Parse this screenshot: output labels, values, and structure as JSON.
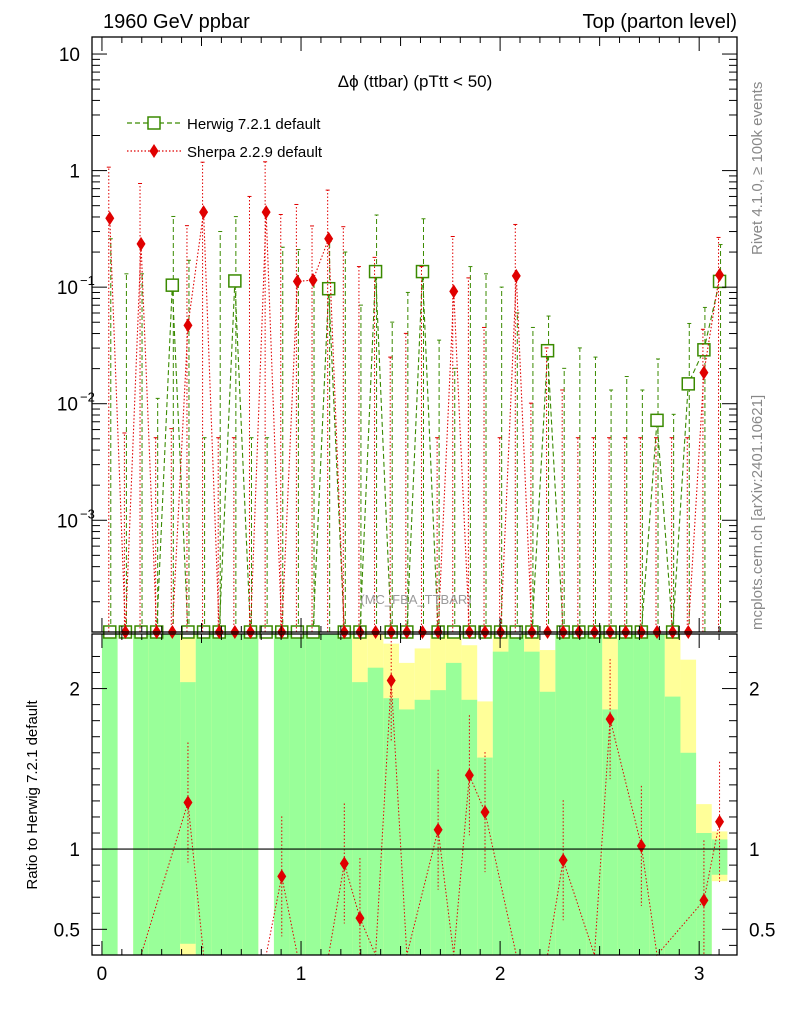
{
  "header": {
    "left": "1960 GeV ppbar",
    "right": "Top (parton level)"
  },
  "side": {
    "top": "Rivet 4.1.0, ≥ 100k events",
    "bottom": "mcplots.cern.ch [arXiv:2401.10621]"
  },
  "colors": {
    "herwig": "#3a8a00",
    "sherpa": "#e00000",
    "band_green": "#99ff99",
    "band_yellow": "#ffff99"
  },
  "chart_data": [
    {
      "type": "line",
      "name": "main",
      "title": "Δϕ (ttbar) (pTtt < 50)",
      "analysis_label": "(MC_FBA_TTBAR)",
      "yscale": "log",
      "xlim": [
        -0.05,
        3.19
      ],
      "ylim": [
        0.00011,
        14
      ],
      "ytick_labels": [
        {
          "v": 0.001,
          "base": "10",
          "exp": "−3"
        },
        {
          "v": 0.01,
          "base": "10",
          "exp": "−2"
        },
        {
          "v": 0.1,
          "base": "10",
          "exp": "−1"
        },
        {
          "v": 1,
          "base": "1",
          "exp": ""
        },
        {
          "v": 10,
          "base": "10",
          "exp": ""
        }
      ],
      "legend": [
        {
          "label": "Herwig 7.2.1 default",
          "marker": "open-square"
        },
        {
          "label": "Sherpa 2.2.9 default",
          "marker": "diamond"
        }
      ],
      "x": [
        0.0393,
        0.1178,
        0.1963,
        0.2749,
        0.3534,
        0.432,
        0.5105,
        0.589,
        0.6676,
        0.7461,
        0.8247,
        0.9032,
        0.9817,
        1.0603,
        1.1388,
        1.2174,
        1.2959,
        1.3744,
        1.453,
        1.5315,
        1.6101,
        1.6886,
        1.7671,
        1.8457,
        1.9242,
        2.0028,
        2.0813,
        2.1598,
        2.2384,
        2.3169,
        2.3955,
        2.474,
        2.5525,
        2.6311,
        2.7096,
        2.7882,
        2.8667,
        2.9452,
        3.0238,
        3.1023
      ],
      "series": [
        {
          "name": "Herwig 7.2.1 default",
          "values": [
            0.00011,
            0.00011,
            0.00011,
            0.00011,
            0.104,
            0.00011,
            0.00011,
            0.00011,
            0.113,
            0.00011,
            0.00011,
            0.00011,
            0.00011,
            0.00011,
            0.097,
            0.00011,
            0.00011,
            0.136,
            0.00011,
            0.00011,
            0.136,
            0.00011,
            0.00011,
            0.00011,
            0.00011,
            0.00011,
            0.00011,
            0.00011,
            0.0285,
            0.00011,
            0.00011,
            0.00011,
            0.00011,
            0.00011,
            0.00011,
            0.0072,
            0.00011,
            0.0148,
            0.029,
            0.112
          ],
          "err_hi": [
            0.26,
            0.13,
            0.13,
            0.011,
            0.3,
            0.17,
            0.005,
            0.3,
            0.29,
            0.005,
            0.005,
            0.22,
            0.21,
            0.12,
            0.15,
            0.2,
            0.07,
            0.28,
            0.05,
            0.09,
            0.25,
            0.035,
            0.02,
            0.15,
            0.13,
            0.1,
            0.06,
            0.045,
            0.028,
            0.02,
            0.03,
            0.025,
            0.013,
            0.017,
            0.013,
            0.017,
            0.008,
            0.034,
            0.038,
            0.12
          ]
        },
        {
          "name": "Sherpa 2.2.9 default",
          "values": [
            0.39,
            0.00011,
            0.235,
            0.00011,
            0.00011,
            0.047,
            0.44,
            0.00011,
            0.00011,
            0.00011,
            0.44,
            0.00011,
            0.112,
            0.115,
            0.26,
            0.00011,
            0.00011,
            0.00011,
            0.00011,
            0.00011,
            0.00011,
            0.00011,
            0.092,
            0.00011,
            0.00011,
            0.00011,
            0.125,
            0.00011,
            0.00011,
            0.00011,
            0.00011,
            0.00011,
            0.00011,
            0.00011,
            0.00011,
            0.00011,
            0.00011,
            0.00011,
            0.0185,
            0.127
          ],
          "err_hi": [
            0.68,
            0.0055,
            0.54,
            0.005,
            0.006,
            0.29,
            0.74,
            0.005,
            0.005,
            0.6,
            0.75,
            0.42,
            0.4,
            0.22,
            0.42,
            0.33,
            0.15,
            0.18,
            0.025,
            0.04,
            0.15,
            0.005,
            0.18,
            0.12,
            0.045,
            0.005,
            0.22,
            0.01,
            0.03,
            0.013,
            0.005,
            0.005,
            0.005,
            0.005,
            0.005,
            0.005,
            0.005,
            0.005,
            0.025,
            0.14
          ]
        }
      ]
    },
    {
      "type": "line",
      "name": "ratio",
      "ylabel": "Ratio to Herwig 7.2.1 default",
      "xlim": [
        -0.05,
        3.19
      ],
      "ylim": [
        0.34,
        2.34
      ],
      "reference": 1,
      "xtick_labels": [
        0,
        1,
        2,
        3
      ],
      "ytick_labels": [
        0.5,
        1,
        2
      ],
      "sherpa_ratio": [
        {
          "x": 0.432,
          "y": 1.29
        },
        {
          "x": 0.9032,
          "y": 0.83
        },
        {
          "x": 1.2174,
          "y": 0.91
        },
        {
          "x": 1.2959,
          "y": 0.57
        },
        {
          "x": 1.453,
          "y": 2.05
        },
        {
          "x": 1.6886,
          "y": 1.12
        },
        {
          "x": 1.8457,
          "y": 1.46
        },
        {
          "x": 1.9242,
          "y": 1.23
        },
        {
          "x": 2.3169,
          "y": 0.93
        },
        {
          "x": 2.5525,
          "y": 1.81
        },
        {
          "x": 2.7096,
          "y": 1.02
        },
        {
          "x": 3.0238,
          "y": 0.68
        },
        {
          "x": 3.1023,
          "y": 1.17
        }
      ],
      "sherpa_ratio_drops": [
        0.1963,
        0.5105,
        0.8247,
        0.9817,
        1.1388,
        1.3744,
        1.5315,
        1.7671,
        2.0813,
        2.2384,
        2.474,
        2.7882
      ],
      "bands": [
        {
          "x0": 0.0,
          "x1": 0.0785,
          "green": [
            0.34,
            2.34
          ],
          "yellow": [
            0.34,
            2.34
          ]
        },
        {
          "x0": 0.0785,
          "x1": 0.157,
          "green": [
            0.34,
            0.34
          ],
          "yellow": [
            0.34,
            0.34
          ]
        },
        {
          "x0": 0.157,
          "x1": 0.2356,
          "green": [
            0.34,
            2.34
          ],
          "yellow": [
            0.34,
            2.34
          ]
        },
        {
          "x0": 0.2356,
          "x1": 0.3141,
          "green": [
            0.34,
            2.34
          ],
          "yellow": [
            0.34,
            2.34
          ]
        },
        {
          "x0": 0.3141,
          "x1": 0.3927,
          "green": [
            0.34,
            2.34
          ],
          "yellow": [
            0.34,
            2.34
          ]
        },
        {
          "x0": 0.3927,
          "x1": 0.4712,
          "green": [
            0.41,
            2.04
          ],
          "yellow": [
            0.34,
            2.34
          ]
        },
        {
          "x0": 0.4712,
          "x1": 0.5498,
          "green": [
            0.34,
            2.34
          ],
          "yellow": [
            0.34,
            2.34
          ]
        },
        {
          "x0": 0.5498,
          "x1": 0.6283,
          "green": [
            0.34,
            2.34
          ],
          "yellow": [
            0.34,
            2.34
          ]
        },
        {
          "x0": 0.6283,
          "x1": 0.7068,
          "green": [
            0.34,
            2.34
          ],
          "yellow": [
            0.34,
            2.34
          ]
        },
        {
          "x0": 0.7068,
          "x1": 0.7854,
          "green": [
            0.34,
            2.34
          ],
          "yellow": [
            0.34,
            2.34
          ]
        },
        {
          "x0": 0.7854,
          "x1": 0.8639,
          "green": [
            0.34,
            0.34
          ],
          "yellow": [
            0.34,
            0.34
          ]
        },
        {
          "x0": 0.8639,
          "x1": 0.9425,
          "green": [
            0.34,
            2.34
          ],
          "yellow": [
            0.34,
            2.34
          ]
        },
        {
          "x0": 0.9425,
          "x1": 1.021,
          "green": [
            0.34,
            2.34
          ],
          "yellow": [
            0.34,
            2.34
          ]
        },
        {
          "x0": 1.021,
          "x1": 1.0996,
          "green": [
            0.34,
            2.34
          ],
          "yellow": [
            0.34,
            2.34
          ]
        },
        {
          "x0": 1.0996,
          "x1": 1.1781,
          "green": [
            0.34,
            2.34
          ],
          "yellow": [
            0.34,
            2.34
          ]
        },
        {
          "x0": 1.1781,
          "x1": 1.2566,
          "green": [
            0.34,
            2.34
          ],
          "yellow": [
            0.34,
            2.34
          ]
        },
        {
          "x0": 1.2566,
          "x1": 1.3352,
          "green": [
            0.34,
            2.04
          ],
          "yellow": [
            0.34,
            2.34
          ]
        },
        {
          "x0": 1.3352,
          "x1": 1.4137,
          "green": [
            0.34,
            2.13
          ],
          "yellow": [
            0.34,
            2.34
          ]
        },
        {
          "x0": 1.4137,
          "x1": 1.4923,
          "green": [
            0.34,
            1.94
          ],
          "yellow": [
            0.34,
            2.28
          ]
        },
        {
          "x0": 1.4923,
          "x1": 1.5708,
          "green": [
            0.34,
            1.87
          ],
          "yellow": [
            0.34,
            2.16
          ]
        },
        {
          "x0": 1.5708,
          "x1": 1.6493,
          "green": [
            0.34,
            1.93
          ],
          "yellow": [
            0.34,
            2.25
          ]
        },
        {
          "x0": 1.6493,
          "x1": 1.7279,
          "green": [
            0.34,
            1.99
          ],
          "yellow": [
            0.34,
            2.34
          ]
        },
        {
          "x0": 1.7279,
          "x1": 1.8064,
          "green": [
            0.34,
            2.16
          ],
          "yellow": [
            0.34,
            2.34
          ]
        },
        {
          "x0": 1.8064,
          "x1": 1.885,
          "green": [
            0.34,
            1.93
          ],
          "yellow": [
            0.34,
            2.27
          ]
        },
        {
          "x0": 1.885,
          "x1": 1.9635,
          "green": [
            0.34,
            1.57
          ],
          "yellow": [
            0.34,
            1.92
          ]
        },
        {
          "x0": 1.9635,
          "x1": 2.042,
          "green": [
            0.34,
            2.23
          ],
          "yellow": [
            0.34,
            2.34
          ]
        },
        {
          "x0": 2.042,
          "x1": 2.1206,
          "green": [
            0.34,
            2.34
          ],
          "yellow": [
            0.34,
            2.34
          ]
        },
        {
          "x0": 2.1206,
          "x1": 2.1991,
          "green": [
            0.34,
            2.23
          ],
          "yellow": [
            0.34,
            2.34
          ]
        },
        {
          "x0": 2.1991,
          "x1": 2.2777,
          "green": [
            0.34,
            1.98
          ],
          "yellow": [
            0.34,
            2.24
          ]
        },
        {
          "x0": 2.2777,
          "x1": 2.3562,
          "green": [
            0.34,
            2.34
          ],
          "yellow": [
            0.34,
            2.34
          ]
        },
        {
          "x0": 2.3562,
          "x1": 2.4347,
          "green": [
            0.34,
            2.34
          ],
          "yellow": [
            0.34,
            2.34
          ]
        },
        {
          "x0": 2.4347,
          "x1": 2.5133,
          "green": [
            0.34,
            2.34
          ],
          "yellow": [
            0.34,
            2.34
          ]
        },
        {
          "x0": 2.5133,
          "x1": 2.5918,
          "green": [
            0.34,
            1.87
          ],
          "yellow": [
            0.34,
            2.34
          ]
        },
        {
          "x0": 2.5918,
          "x1": 2.6704,
          "green": [
            0.34,
            2.34
          ],
          "yellow": [
            0.34,
            2.34
          ]
        },
        {
          "x0": 2.6704,
          "x1": 2.7489,
          "green": [
            0.34,
            2.34
          ],
          "yellow": [
            0.34,
            2.34
          ]
        },
        {
          "x0": 2.7489,
          "x1": 2.8274,
          "green": [
            0.34,
            2.34
          ],
          "yellow": [
            0.34,
            2.34
          ]
        },
        {
          "x0": 2.8274,
          "x1": 2.906,
          "green": [
            0.34,
            1.95
          ],
          "yellow": [
            0.34,
            2.34
          ]
        },
        {
          "x0": 2.906,
          "x1": 2.9845,
          "green": [
            0.34,
            1.6
          ],
          "yellow": [
            0.34,
            2.18
          ]
        },
        {
          "x0": 2.9845,
          "x1": 3.0631,
          "green": [
            0.34,
            1.1
          ],
          "yellow": [
            0.34,
            1.28
          ]
        },
        {
          "x0": 3.0631,
          "x1": 3.1416,
          "green": [
            0.84,
            1.06
          ],
          "yellow": [
            0.8,
            1.11
          ]
        }
      ]
    }
  ]
}
